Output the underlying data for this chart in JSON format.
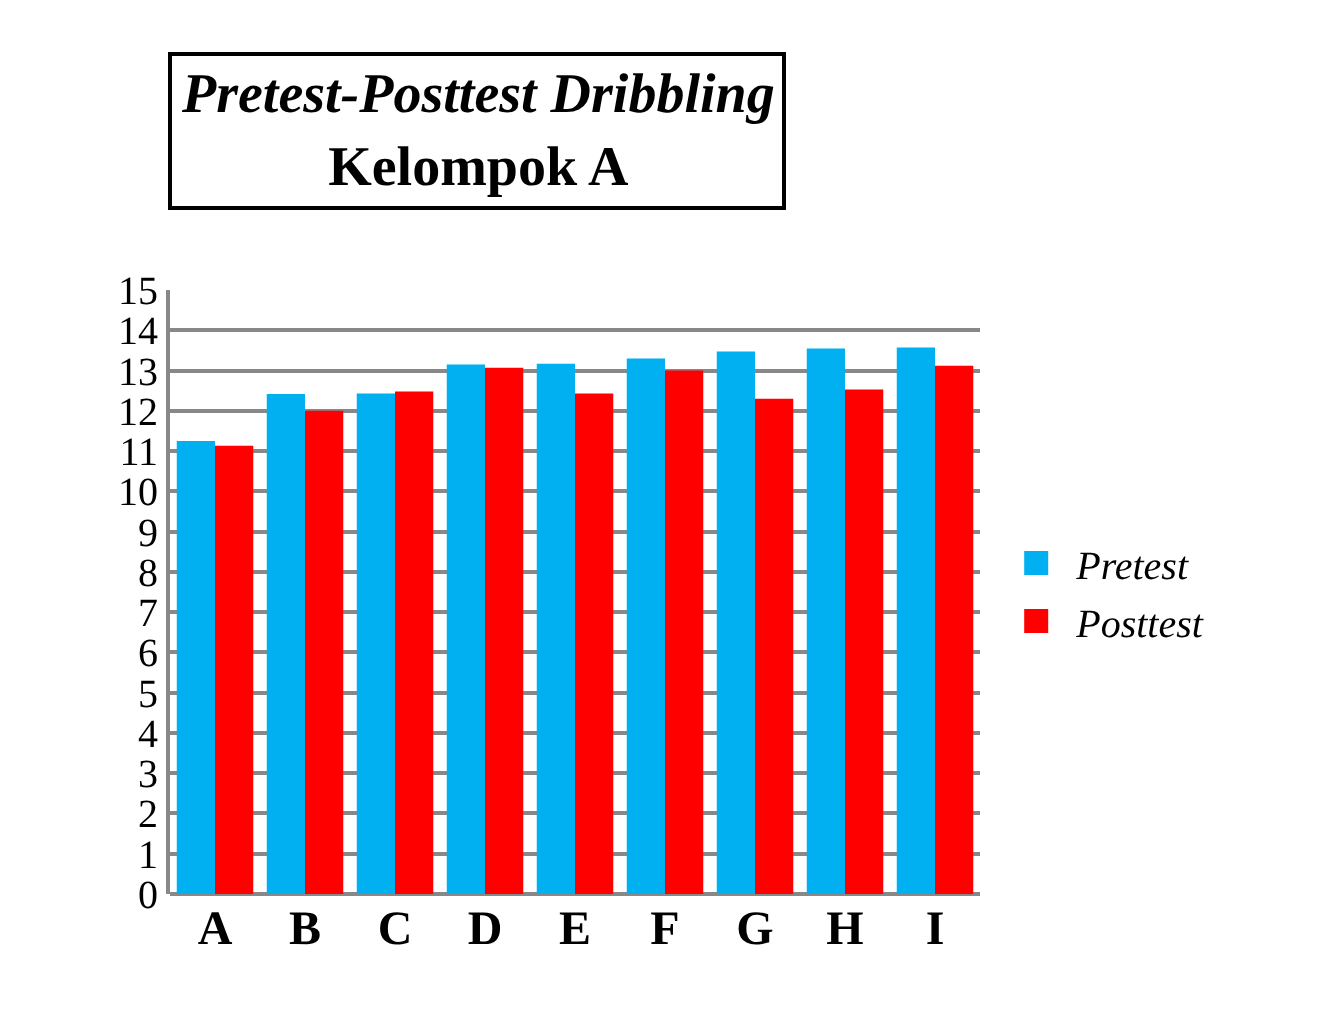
{
  "chart_data": {
    "type": "bar",
    "title": "Pretest-Posttest Dribbling",
    "subtitle": "Kelompok A",
    "categories": [
      "A",
      "B",
      "C",
      "D",
      "E",
      "F",
      "G",
      "H",
      "I"
    ],
    "series": [
      {
        "name": "Pretest",
        "color": "#00b0f0",
        "values": [
          11.25,
          12.42,
          12.43,
          13.15,
          13.17,
          13.3,
          13.47,
          13.55,
          13.57
        ]
      },
      {
        "name": "Posttest",
        "color": "#ff0000",
        "values": [
          11.13,
          12.0,
          12.48,
          13.07,
          12.43,
          13.0,
          12.3,
          12.53,
          13.12
        ]
      }
    ],
    "ylim": [
      0,
      15
    ],
    "yticks": [
      0,
      1,
      2,
      3,
      4,
      5,
      6,
      7,
      8,
      9,
      10,
      11,
      12,
      13,
      14,
      15
    ],
    "grid": "y",
    "legend": "right"
  }
}
